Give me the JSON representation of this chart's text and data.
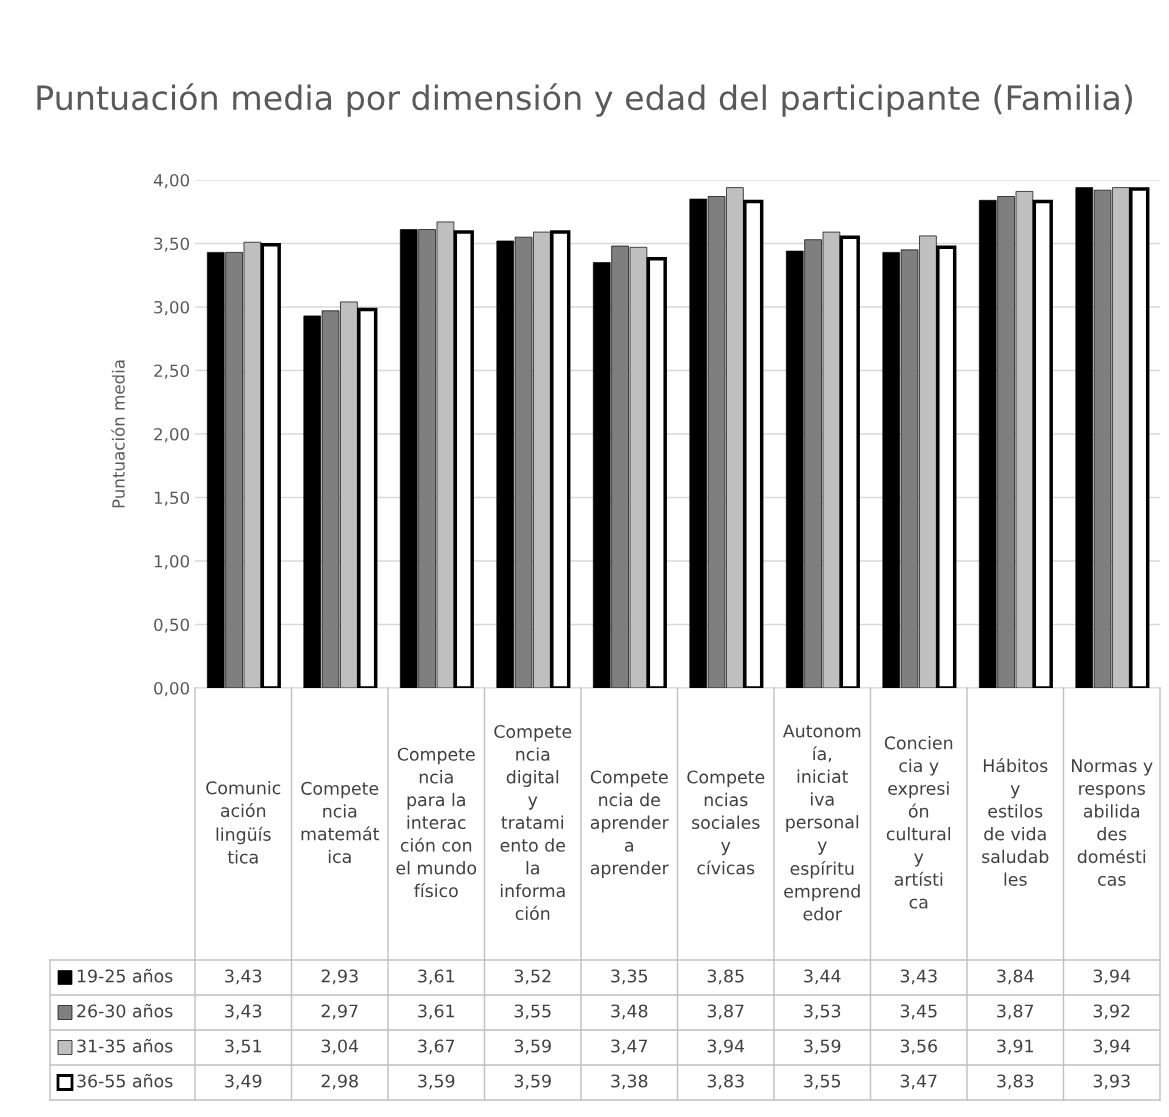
{
  "chart_data": {
    "type": "bar",
    "title": "Puntuación media por dimensión y edad del participante (Familia)",
    "ylabel": "Puntuación media",
    "categories": [
      "Comunicación lingüística",
      "Competencia matemática",
      "Competencia para la interacción con el mundo físico",
      "Competencia digital y tratamiento de la información",
      "Competencia de aprender a aprender",
      "Competencias sociales y cívicas",
      "Autonomía, iniciativa personal y espíritu emprendedor",
      "Conciencia y expresión cultural y artística",
      "Hábitos y estilos de vida saludables",
      "Normas y responsabilidades domésticas"
    ],
    "series": [
      {
        "name": "19-25 años",
        "color": "#000000",
        "values": [
          3.43,
          2.93,
          3.61,
          3.52,
          3.35,
          3.85,
          3.44,
          3.43,
          3.84,
          3.94
        ],
        "value_labels": [
          "3,43",
          "2,93",
          "3,61",
          "3,52",
          "3,35",
          "3,85",
          "3,44",
          "3,43",
          "3,84",
          "3,94"
        ]
      },
      {
        "name": "26-30 años",
        "color": "#7f7f7f",
        "values": [
          3.43,
          2.97,
          3.61,
          3.55,
          3.48,
          3.87,
          3.53,
          3.45,
          3.87,
          3.92
        ],
        "value_labels": [
          "3,43",
          "2,97",
          "3,61",
          "3,55",
          "3,48",
          "3,87",
          "3,53",
          "3,45",
          "3,87",
          "3,92"
        ]
      },
      {
        "name": "31-35 años",
        "color": "#bfbfbf",
        "values": [
          3.51,
          3.04,
          3.67,
          3.59,
          3.47,
          3.94,
          3.59,
          3.56,
          3.91,
          3.94
        ],
        "value_labels": [
          "3,51",
          "3,04",
          "3,67",
          "3,59",
          "3,47",
          "3,94",
          "3,59",
          "3,56",
          "3,91",
          "3,94"
        ]
      },
      {
        "name": "36-55 años",
        "color": "#ffffff",
        "values": [
          3.49,
          2.98,
          3.59,
          3.59,
          3.38,
          3.83,
          3.55,
          3.47,
          3.83,
          3.93
        ],
        "value_labels": [
          "3,49",
          "2,98",
          "3,59",
          "3,59",
          "3,38",
          "3,83",
          "3,55",
          "3,47",
          "3,83",
          "3,93"
        ]
      }
    ],
    "ylim": [
      0,
      4
    ],
    "yticks": [
      {
        "value": 0,
        "label": "0,00"
      },
      {
        "value": 0.5,
        "label": "0,50"
      },
      {
        "value": 1,
        "label": "1,00"
      },
      {
        "value": 1.5,
        "label": "1,50"
      },
      {
        "value": 2,
        "label": "2,00"
      },
      {
        "value": 2.5,
        "label": "2,50"
      },
      {
        "value": 3,
        "label": "3,00"
      },
      {
        "value": 3.5,
        "label": "3,50"
      },
      {
        "value": 4,
        "label": "4,00"
      }
    ],
    "grid": "y",
    "legend": "bottom"
  }
}
